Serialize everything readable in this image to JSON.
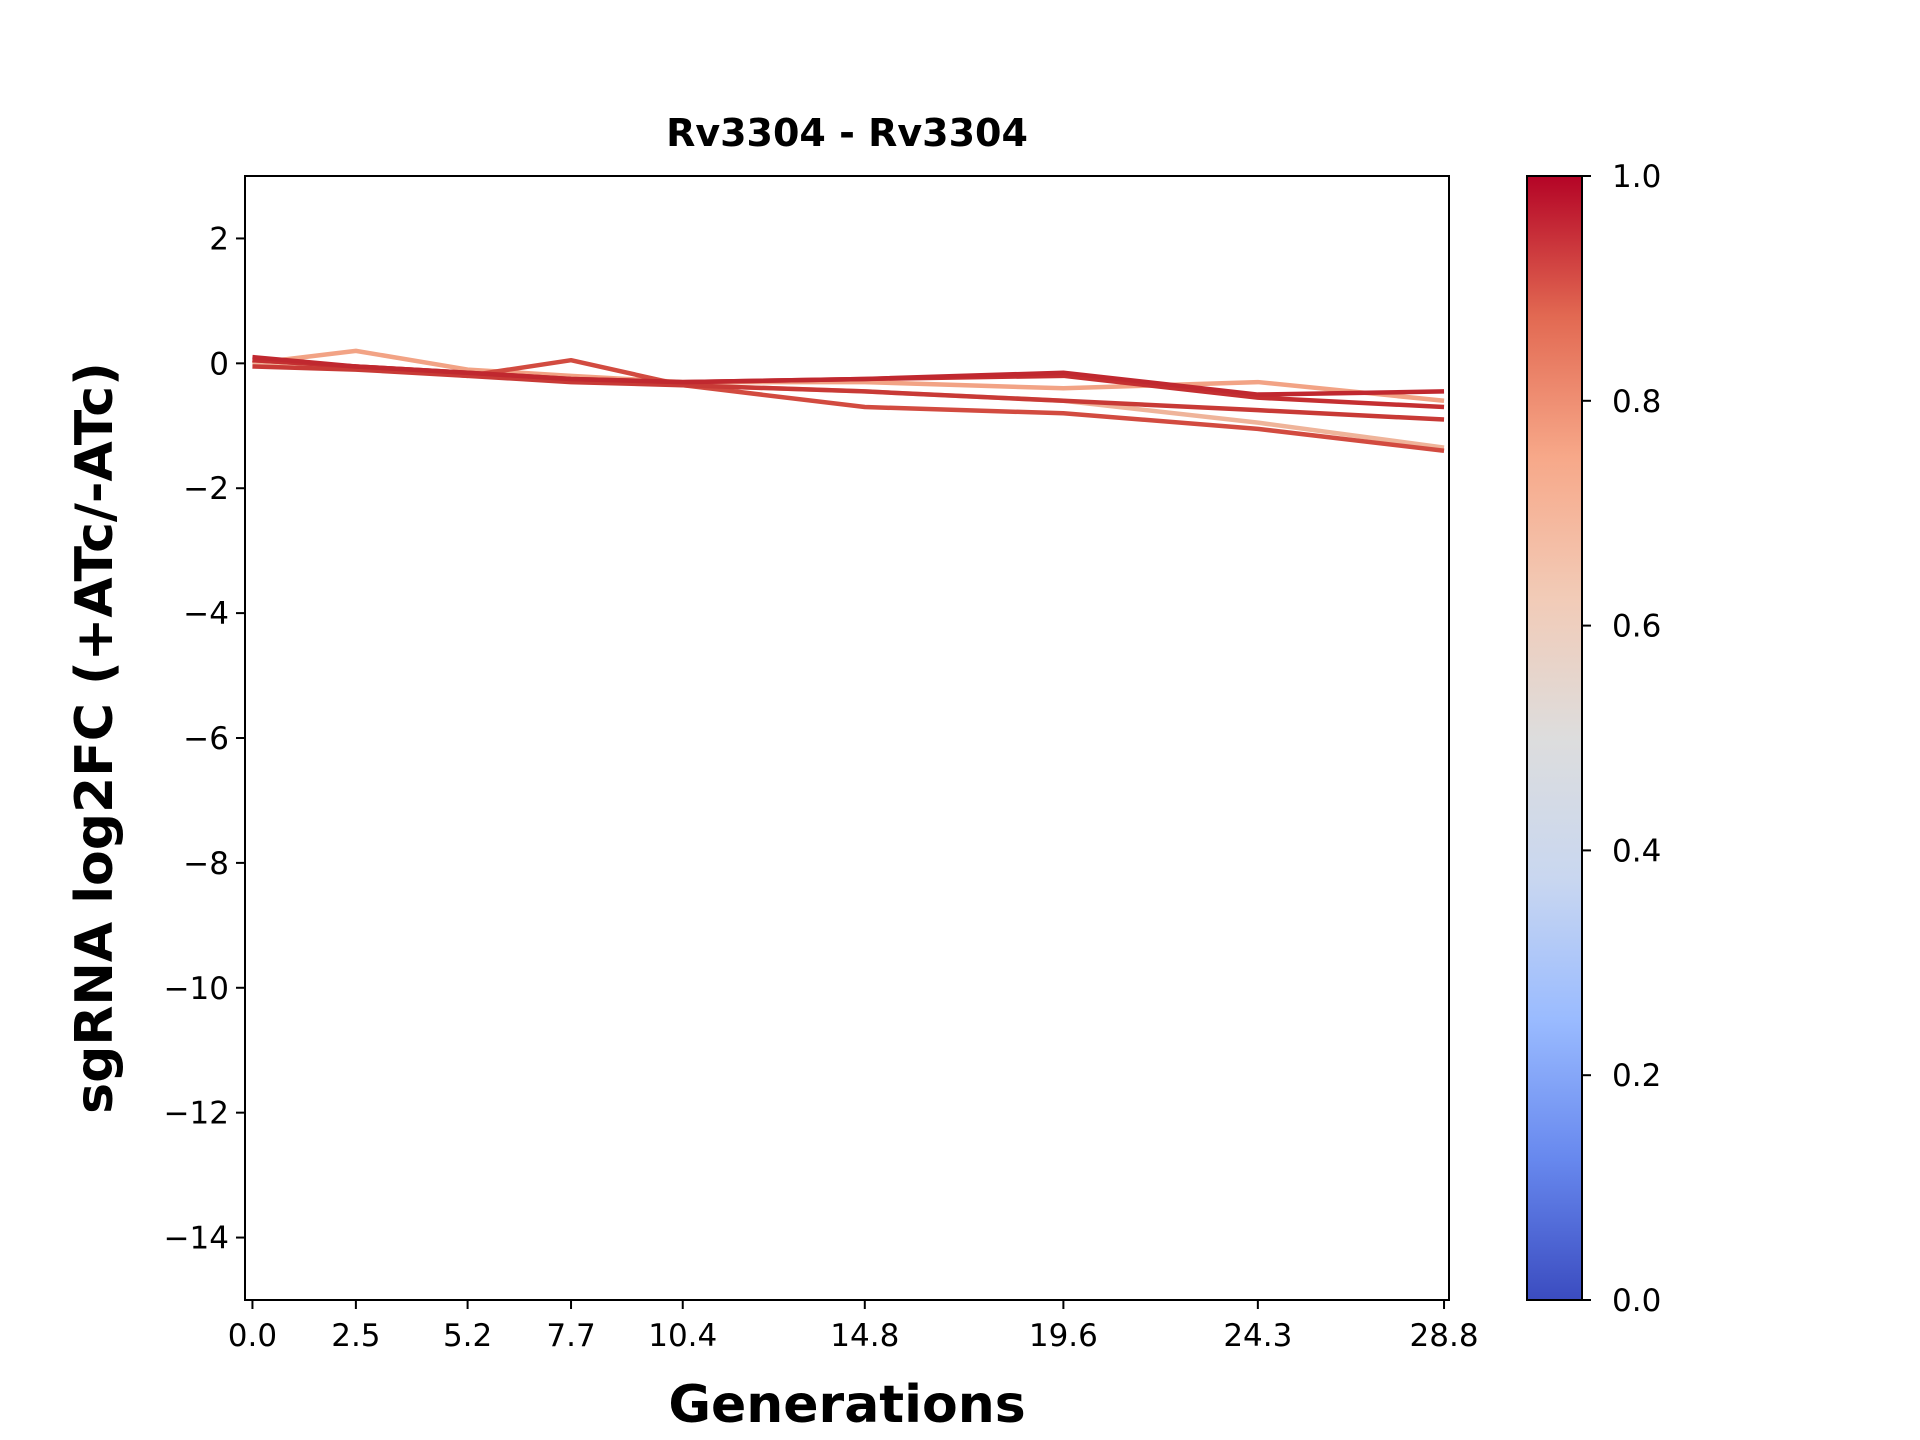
{
  "chart_data": {
    "type": "line",
    "title": "Rv3304 - Rv3304",
    "x_label": "Generations",
    "y_label": "sgRNA log2FC (+ATc/-ATc)",
    "x": [
      0,
      2.5,
      5.2,
      7.7,
      10.4,
      14.8,
      19.6,
      24.3,
      28.8
    ],
    "xlim": [
      -0.18,
      28.92
    ],
    "xticks": [
      {
        "value": 0,
        "label": "0.0"
      },
      2.5,
      5.2,
      7.7,
      10.4,
      14.8,
      19.6,
      24.3,
      28.8
    ],
    "ylim": [
      -15,
      3
    ],
    "yticks": [
      {
        "value": 2,
        "label": "2"
      },
      {
        "value": 0,
        "label": "0"
      },
      {
        "value": -2,
        "label": "−2"
      },
      {
        "value": -4,
        "label": "−4"
      },
      {
        "value": -6,
        "label": "−6"
      },
      {
        "value": -8,
        "label": "−8"
      },
      {
        "value": -10,
        "label": "−10"
      },
      {
        "value": -12,
        "label": "−12"
      },
      {
        "value": -14,
        "label": "−14"
      }
    ],
    "series": [
      {
        "color": "#f2a385",
        "values": [
          0,
          0.2,
          -0.1,
          -0.2,
          -0.3,
          -0.3,
          -0.4,
          -0.3,
          -0.6
        ]
      },
      {
        "color": "#efb49a",
        "values": [
          0,
          -0.05,
          -0.15,
          -0.25,
          -0.35,
          -0.45,
          -0.6,
          -0.95,
          -1.35
        ]
      },
      {
        "color": "#d24b40",
        "values": [
          0.05,
          -0.05,
          -0.2,
          0.05,
          -0.35,
          -0.7,
          -0.8,
          -1.05,
          -1.4
        ]
      },
      {
        "color": "#c83a36",
        "values": [
          -0.05,
          -0.1,
          -0.2,
          -0.3,
          -0.35,
          -0.45,
          -0.6,
          -0.75,
          -0.9
        ]
      },
      {
        "color": "#c42f31",
        "values": [
          0.05,
          -0.05,
          -0.15,
          -0.25,
          -0.3,
          -0.25,
          -0.2,
          -0.55,
          -0.7
        ]
      },
      {
        "color": "#c0282f",
        "values": [
          0.1,
          -0.05,
          -0.15,
          -0.25,
          -0.3,
          -0.25,
          -0.15,
          -0.5,
          -0.45
        ]
      }
    ],
    "colorbar": {
      "lim": [
        0,
        1
      ],
      "ticks": [
        {
          "value": 0,
          "label": "0.0"
        },
        0.2,
        0.4,
        0.6,
        0.8,
        {
          "value": 1,
          "label": "1.0"
        }
      ],
      "colors": [
        "#3b4cc0",
        "#6788ee",
        "#9abbff",
        "#c9d7f0",
        "#dddddd",
        "#f2cbb7",
        "#f7a889",
        "#e26952",
        "#b40426"
      ]
    }
  }
}
